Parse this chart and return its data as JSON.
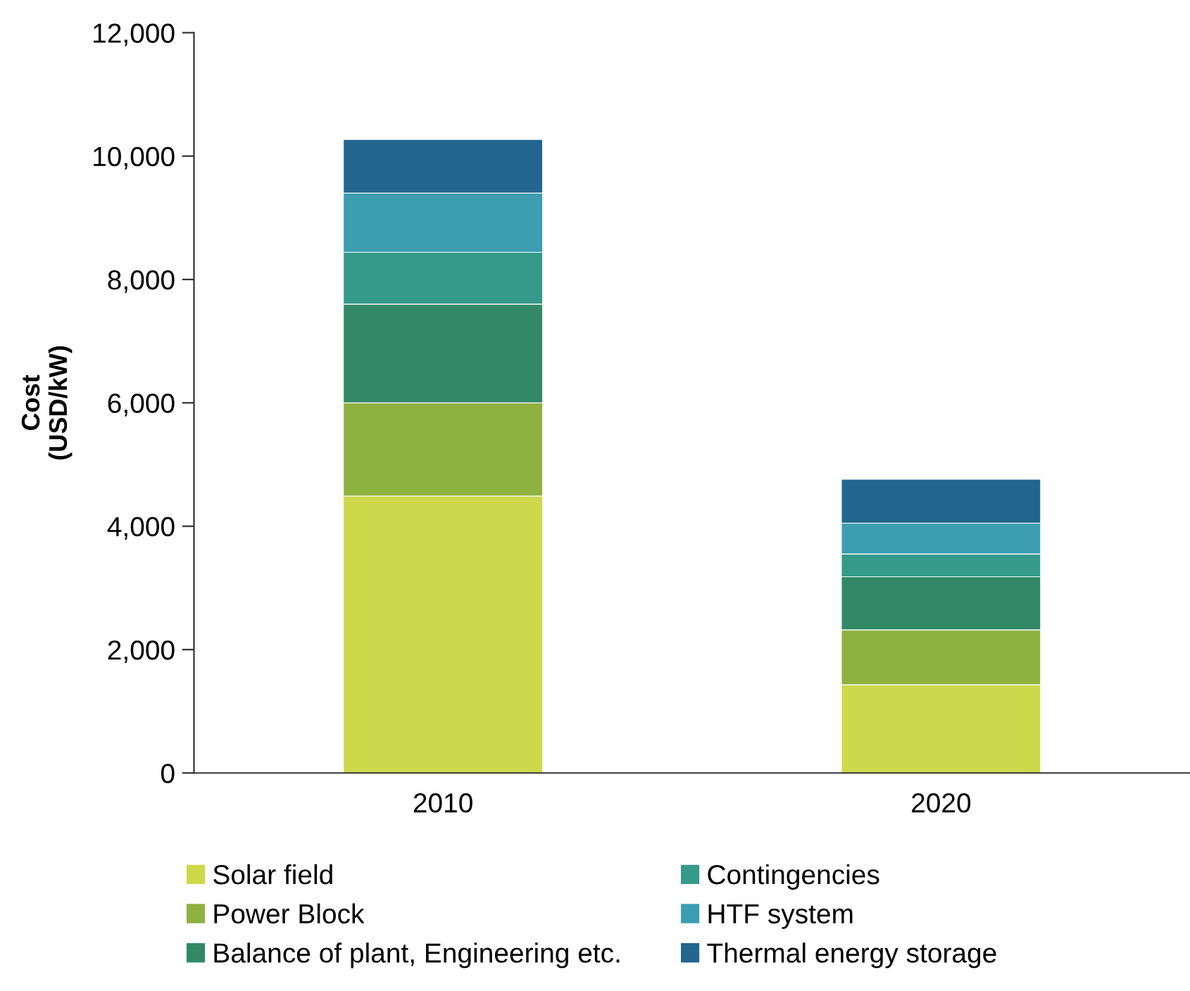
{
  "chart_data": {
    "type": "bar",
    "stacked": true,
    "ylabel": "Cost\n(USD/kW)",
    "categories": [
      "2010",
      "2020"
    ],
    "series": [
      {
        "name": "Solar field",
        "color": "#cdd84b",
        "values": [
          4490,
          1430
        ]
      },
      {
        "name": "Power Block",
        "color": "#8fb140",
        "values": [
          1510,
          890
        ]
      },
      {
        "name": "Balance of plant, Engineering etc.",
        "color": "#338868",
        "values": [
          1600,
          860
        ]
      },
      {
        "name": "Contingencies",
        "color": "#359a89",
        "values": [
          840,
          370
        ]
      },
      {
        "name": "HTF system",
        "color": "#3d9db1",
        "values": [
          960,
          500
        ]
      },
      {
        "name": "Thermal energy storage",
        "color": "#22668f",
        "values": [
          870,
          710
        ]
      }
    ],
    "ylim": [
      0,
      12000
    ],
    "yticks": [
      {
        "value": 0,
        "label": "0"
      },
      {
        "value": 2000,
        "label": "2,000"
      },
      {
        "value": 4000,
        "label": "4,000"
      },
      {
        "value": 6000,
        "label": "6,000"
      },
      {
        "value": 8000,
        "label": "8,000"
      },
      {
        "value": 10000,
        "label": "10,000"
      },
      {
        "value": 12000,
        "label": "12,000"
      }
    ],
    "grid": false,
    "legend": "bottom"
  }
}
